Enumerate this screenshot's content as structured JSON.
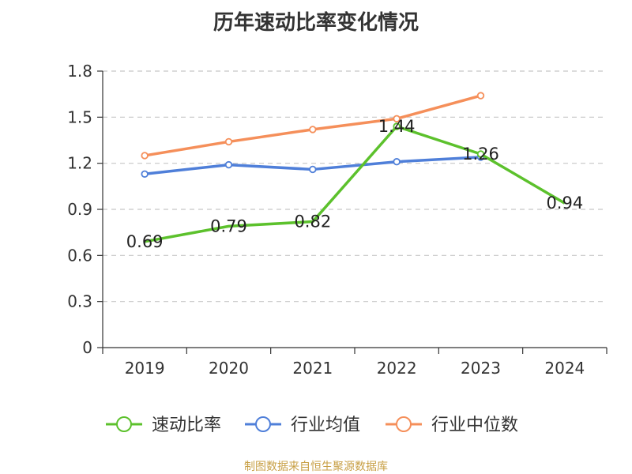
{
  "chart_data": {
    "type": "line",
    "title": "历年速动比率变化情况",
    "categories": [
      "2019",
      "2020",
      "2021",
      "2022",
      "2023",
      "2024"
    ],
    "ylim": [
      0,
      1.8
    ],
    "yticks": [
      "0",
      "0.3",
      "0.6",
      "0.9",
      "1.2",
      "1.5",
      "1.8"
    ],
    "grid": true,
    "legend_position": "bottom",
    "series": [
      {
        "name": "速动比率",
        "color": "#5cc12c",
        "values": [
          0.69,
          0.79,
          0.82,
          1.44,
          1.26,
          0.94
        ],
        "labels": [
          "0.69",
          "0.79",
          "0.82",
          "1.44",
          "1.26",
          "0.94"
        ]
      },
      {
        "name": "行业均值",
        "color": "#4f7fd9",
        "values": [
          1.13,
          1.19,
          1.16,
          1.21,
          1.24,
          null
        ]
      },
      {
        "name": "行业中位数",
        "color": "#f58f5a",
        "values": [
          1.25,
          1.34,
          1.42,
          1.49,
          1.64,
          null
        ]
      }
    ]
  },
  "footer": {
    "source": "制图数据来自恒生聚源数据库"
  }
}
